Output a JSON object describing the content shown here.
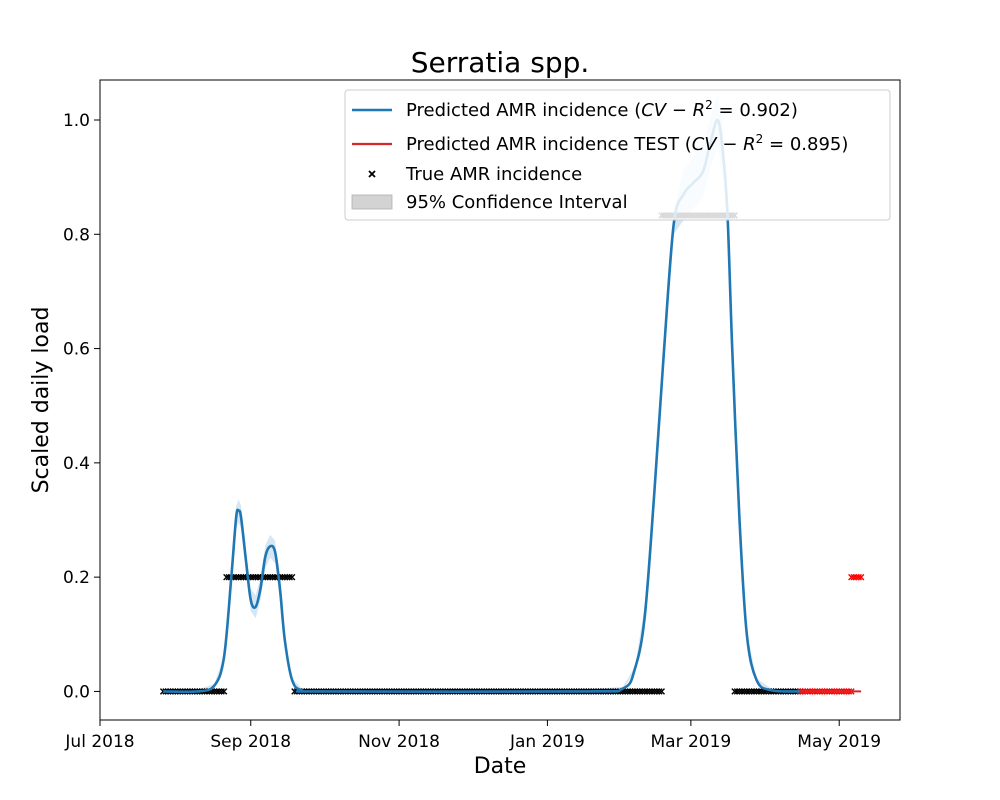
{
  "chart_data": {
    "type": "line",
    "title": "Serratia spp.",
    "xlabel": "Date",
    "ylabel": "Scaled daily load",
    "x_ticks": [
      "Jul 2018",
      "Sep 2018",
      "Nov 2018",
      "Jan 2019",
      "Mar 2019",
      "May 2019"
    ],
    "y_ticks": [
      "0.0",
      "0.2",
      "0.4",
      "0.6",
      "0.8",
      "1.0"
    ],
    "xlim": [
      "2018-07-01",
      "2019-05-26"
    ],
    "ylim": [
      -0.05,
      1.07
    ],
    "legend": {
      "position": "top-right",
      "entries": [
        {
          "label": "Predicted AMR incidence ($CV-R^2$ = 0.902)",
          "prefix": "Predicted AMR incidence (",
          "metric": "CV − R",
          "sup": "2",
          "suffix": " = 0.902)"
        },
        {
          "label": "Predicted AMR incidence TEST ($CV-R^2$ = 0.895)",
          "prefix": "Predicted AMR incidence TEST (",
          "metric": "CV − R",
          "sup": "2",
          "suffix": " = 0.895)"
        },
        {
          "label": "True AMR incidence"
        },
        {
          "label": "95% Confidence Interval"
        }
      ]
    },
    "colors": {
      "predicted": "#1f77b4",
      "test": "#d62728",
      "true": "#000000",
      "true_test": "#ff0000",
      "ci": "#c6dbef",
      "ci_legend": "#d3d3d3"
    },
    "series": [
      {
        "name": "Predicted AMR incidence",
        "points": [
          [
            "2018-07-27",
            0.0
          ],
          [
            "2018-08-10",
            0.0
          ],
          [
            "2018-08-17",
            0.01
          ],
          [
            "2018-08-21",
            0.06
          ],
          [
            "2018-08-24",
            0.2
          ],
          [
            "2018-08-26",
            0.305
          ],
          [
            "2018-08-27",
            0.316
          ],
          [
            "2018-08-28",
            0.305
          ],
          [
            "2018-08-30",
            0.23
          ],
          [
            "2018-09-01",
            0.16
          ],
          [
            "2018-09-03",
            0.148
          ],
          [
            "2018-09-05",
            0.18
          ],
          [
            "2018-09-07",
            0.236
          ],
          [
            "2018-09-09",
            0.254
          ],
          [
            "2018-09-11",
            0.244
          ],
          [
            "2018-09-13",
            0.18
          ],
          [
            "2018-09-15",
            0.09
          ],
          [
            "2018-09-18",
            0.02
          ],
          [
            "2018-09-22",
            0.002
          ],
          [
            "2018-10-01",
            0.0
          ],
          [
            "2019-01-15",
            0.0
          ],
          [
            "2019-02-01",
            0.005
          ],
          [
            "2019-02-06",
            0.04
          ],
          [
            "2019-02-10",
            0.13
          ],
          [
            "2019-02-14",
            0.35
          ],
          [
            "2019-02-18",
            0.6
          ],
          [
            "2019-02-22",
            0.82
          ],
          [
            "2019-02-26",
            0.87
          ],
          [
            "2019-03-02",
            0.89
          ],
          [
            "2019-03-06",
            0.91
          ],
          [
            "2019-03-09",
            0.96
          ],
          [
            "2019-03-12",
            1.0
          ],
          [
            "2019-03-14",
            0.95
          ],
          [
            "2019-03-16",
            0.84
          ],
          [
            "2019-03-18",
            0.6
          ],
          [
            "2019-03-21",
            0.3
          ],
          [
            "2019-03-24",
            0.1
          ],
          [
            "2019-03-28",
            0.02
          ],
          [
            "2019-04-03",
            0.002
          ],
          [
            "2019-04-15",
            0.0
          ]
        ]
      },
      {
        "name": "Predicted AMR incidence TEST",
        "points": [
          [
            "2019-04-15",
            0.0
          ],
          [
            "2019-05-10",
            0.0
          ]
        ]
      },
      {
        "name": "True AMR incidence",
        "segments": [
          {
            "start": "2018-07-27",
            "end": "2018-08-21",
            "value": 0.0
          },
          {
            "start": "2018-08-22",
            "end": "2018-09-18",
            "value": 0.2
          },
          {
            "start": "2018-09-19",
            "end": "2019-02-17",
            "value": 0.0
          },
          {
            "start": "2019-02-17",
            "end": "2019-03-19",
            "value": 0.833
          },
          {
            "start": "2019-03-19",
            "end": "2019-04-15",
            "value": 0.0
          }
        ]
      },
      {
        "name": "True AMR incidence TEST",
        "segments": [
          {
            "start": "2019-04-15",
            "end": "2019-05-06",
            "value": 0.0
          },
          {
            "start": "2019-05-06",
            "end": "2019-05-10",
            "value": 0.2
          }
        ]
      }
    ]
  }
}
